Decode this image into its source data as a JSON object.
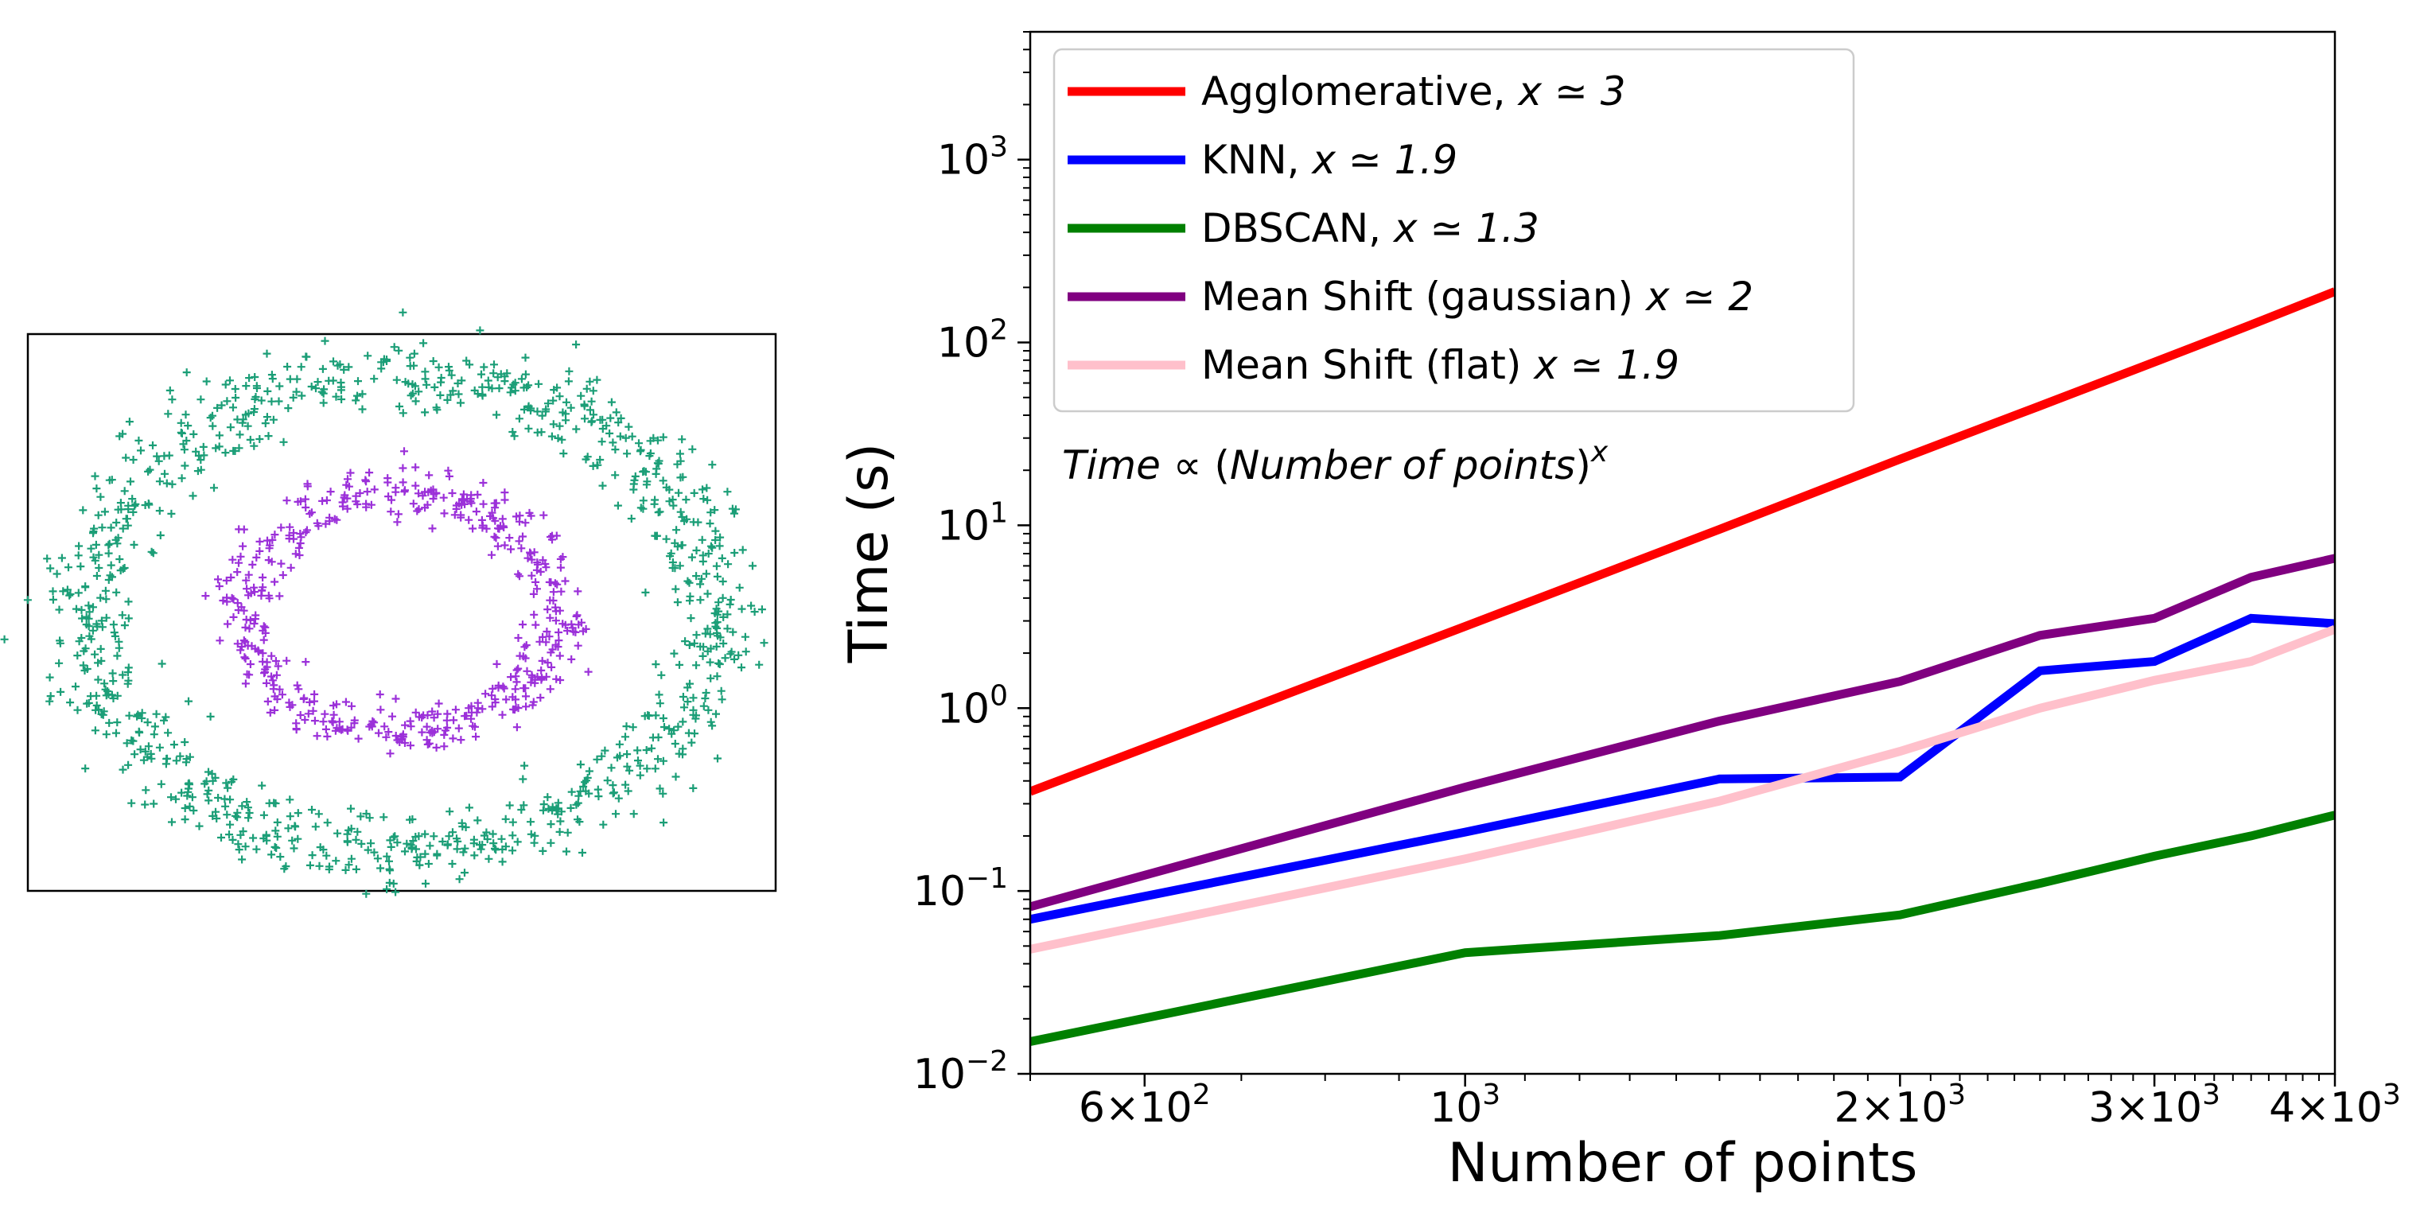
{
  "chart_data": [
    {
      "type": "scatter",
      "title": "",
      "xlabel": "",
      "ylabel": "",
      "axes_visible": false,
      "marker": "+",
      "xlim": [
        -1.1,
        1.1
      ],
      "ylim": [
        -1.1,
        1.1
      ],
      "series": [
        {
          "name": "outer circle",
          "color": "#1b9e77",
          "radius": 1.0,
          "noise": 0.08,
          "count": 1000
        },
        {
          "name": "inner circle",
          "color": "#9b30d9",
          "radius": 0.5,
          "noise": 0.05,
          "count": 500
        }
      ]
    },
    {
      "type": "line",
      "title": "",
      "xlabel": "Number of points",
      "ylabel": "Time (s)",
      "xscale": "log",
      "yscale": "log",
      "xlim": [
        500,
        4000
      ],
      "ylim": [
        0.01,
        5000
      ],
      "x_ticks": [
        {
          "value": 600,
          "base": "6×10",
          "exp": "2"
        },
        {
          "value": 1000,
          "base": "10",
          "exp": "3"
        },
        {
          "value": 2000,
          "base": "2×10",
          "exp": "3"
        },
        {
          "value": 3000,
          "base": "3×10",
          "exp": "3"
        },
        {
          "value": 4000,
          "base": "4×10",
          "exp": "3"
        }
      ],
      "y_ticks": [
        {
          "value": 0.01,
          "base": "10",
          "exp": "−2"
        },
        {
          "value": 0.1,
          "base": "10",
          "exp": "−1"
        },
        {
          "value": 1,
          "base": "10",
          "exp": "0"
        },
        {
          "value": 10,
          "base": "10",
          "exp": "1"
        },
        {
          "value": 100,
          "base": "10",
          "exp": "2"
        },
        {
          "value": 1000,
          "base": "10",
          "exp": "3"
        }
      ],
      "legend_position": "top-left",
      "series": [
        {
          "name": "Agglomerative, ",
          "exponent_label": "x ≃ 3",
          "color": "#ff0000",
          "x": [
            500,
            1000,
            1500,
            2000,
            2500,
            3000,
            3500,
            4000
          ],
          "y": [
            0.35,
            2.8,
            9.5,
            23,
            45,
            78,
            125,
            190
          ]
        },
        {
          "name": "KNN, ",
          "exponent_label": "x ≃ 1.9",
          "color": "#0000ff",
          "x": [
            500,
            1000,
            1500,
            2000,
            2500,
            3000,
            3500,
            4000
          ],
          "y": [
            0.07,
            0.21,
            0.41,
            0.42,
            1.6,
            1.8,
            3.1,
            2.9
          ]
        },
        {
          "name": "DBSCAN, ",
          "exponent_label": "x ≃ 1.3",
          "color": "#008000",
          "x": [
            500,
            1000,
            1500,
            2000,
            2500,
            3000,
            3500,
            4000
          ],
          "y": [
            0.015,
            0.046,
            0.057,
            0.074,
            0.11,
            0.155,
            0.2,
            0.26
          ]
        },
        {
          "name": "Mean Shift (gaussian) ",
          "exponent_label": "x ≃ 2",
          "color": "#800080",
          "x": [
            500,
            1000,
            1500,
            2000,
            2500,
            3000,
            3500,
            4000
          ],
          "y": [
            0.082,
            0.37,
            0.85,
            1.4,
            2.5,
            3.1,
            5.2,
            6.6
          ]
        },
        {
          "name": "Mean Shift (flat) ",
          "exponent_label": "x ≃ 1.9",
          "color": "#ffc0cb",
          "x": [
            500,
            1000,
            1500,
            2000,
            2500,
            3000,
            3500,
            4000
          ],
          "y": [
            0.048,
            0.15,
            0.31,
            0.58,
            1.0,
            1.42,
            1.8,
            2.7
          ]
        }
      ],
      "annotation": {
        "lhs": "Time",
        "prop": " ∝ (",
        "inner": "Number of points",
        "rparen": ")",
        "sup": "x"
      }
    }
  ]
}
